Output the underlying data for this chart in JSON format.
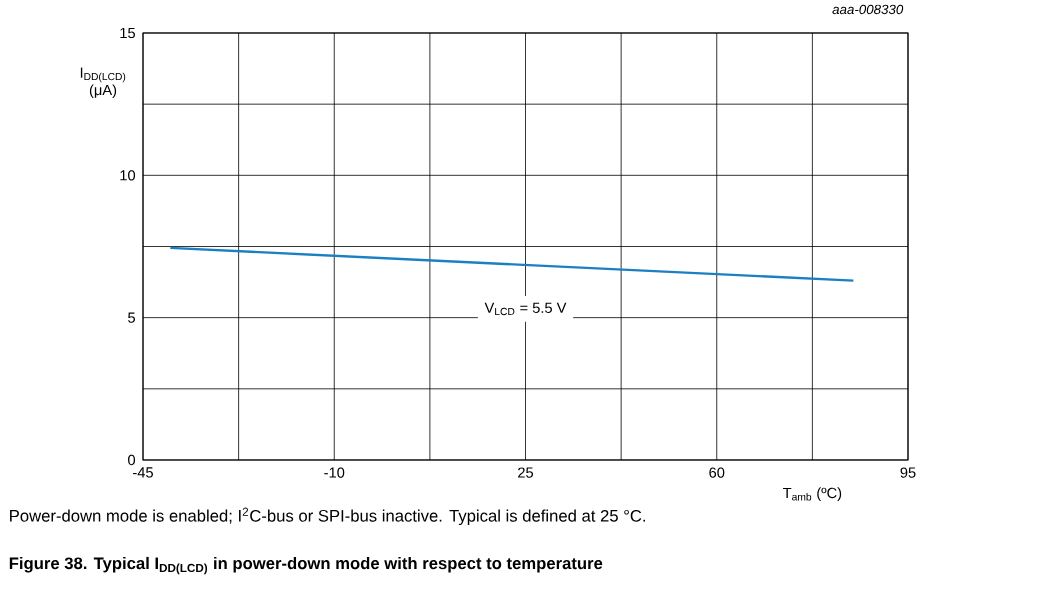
{
  "chart_data": {
    "type": "line",
    "title": "Figure 38.  Typical I$_{DD(LCD)}$ in power-down mode with respect to temperature",
    "xlabel": "T$_{amb}$ (ºC)",
    "ylabel": "I$_{DD(LCD)}$ (μA)",
    "annotations": [
      "aaa-008330",
      "Power-down mode is enabled; I$^{2}$C-bus or SPI-bus inactive. Typical is defined at 25 °C."
    ],
    "series": [
      {
        "name": "V$_{LCD}$ = 5.5 V",
        "color": "#1b7fc4",
        "x": [
          -40,
          85
        ],
        "values": [
          7.45,
          6.3
        ]
      }
    ],
    "xlim": [
      -45,
      95
    ],
    "xticks": [
      -45,
      {
        "value": -27.5,
        "label": null
      },
      -10,
      {
        "value": 7.5,
        "label": null
      },
      25,
      {
        "value": 42.5,
        "label": null
      },
      60,
      {
        "value": 77.5,
        "label": null
      },
      95
    ],
    "ylim": [
      0,
      15
    ],
    "yticks": [
      0,
      {
        "value": 2.5,
        "label": null
      },
      5,
      {
        "value": 7.5,
        "label": null
      },
      10,
      {
        "value": 12.5,
        "label": null
      },
      15
    ],
    "grid": true,
    "marker": "none",
    "line_style": "solid"
  }
}
